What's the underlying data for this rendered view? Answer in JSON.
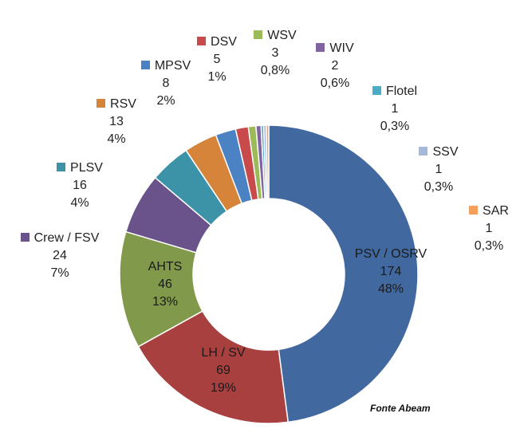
{
  "chart_data": {
    "type": "pie",
    "variant": "donut",
    "title": "",
    "source": "Fonte Abeam",
    "slices": [
      {
        "name": "PSV / OSRV",
        "value": 174,
        "pct": "48%",
        "color": "#4169a0"
      },
      {
        "name": "LH / SV",
        "value": 69,
        "pct": "19%",
        "color": "#a8403f"
      },
      {
        "name": "AHTS",
        "value": 46,
        "pct": "13%",
        "color": "#80994a"
      },
      {
        "name": "Crew / FSV",
        "value": 24,
        "pct": "7%",
        "color": "#6a528a"
      },
      {
        "name": "PLSV",
        "value": 16,
        "pct": "4%",
        "color": "#3c92a6"
      },
      {
        "name": "RSV",
        "value": 13,
        "pct": "4%",
        "color": "#d6843a"
      },
      {
        "name": "MPSV",
        "value": 8,
        "pct": "2%",
        "color": "#4b82c4"
      },
      {
        "name": "DSV",
        "value": 5,
        "pct": "1%",
        "color": "#c94a4a"
      },
      {
        "name": "WSV",
        "value": 3,
        "pct": "0,8%",
        "color": "#9bbb59"
      },
      {
        "name": "WIV",
        "value": 2,
        "pct": "0,6%",
        "color": "#8064a2"
      },
      {
        "name": "Flotel",
        "value": 1,
        "pct": "0,3%",
        "color": "#4bacc6"
      },
      {
        "name": "SSV",
        "value": 1,
        "pct": "0,3%",
        "color": "#a5b8db"
      },
      {
        "name": "SAR",
        "value": 1,
        "pct": "0,3%",
        "color": "#f4a05a"
      }
    ]
  }
}
